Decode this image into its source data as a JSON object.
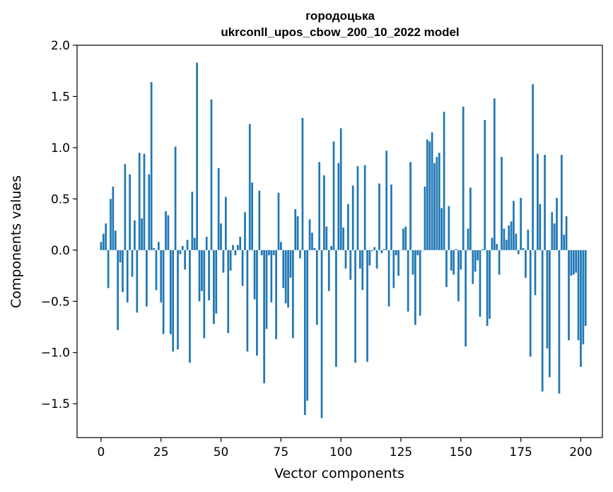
{
  "chart_data": {
    "type": "bar",
    "title": "городоцька",
    "subtitle": "ukrconll_upos_cbow_200_10_2022 model",
    "xlabel": "Vector components",
    "ylabel": "Components values",
    "xlim": [
      -10,
      209
    ],
    "ylim": [
      -1.83,
      2.0
    ],
    "xticks": [
      0,
      25,
      50,
      75,
      100,
      125,
      150,
      175,
      200
    ],
    "yticks": [
      2.0,
      1.5,
      1.0,
      0.5,
      0.0,
      -0.5,
      -1.0,
      -1.5
    ],
    "ytick_labels": [
      "2.0",
      "1.5",
      "1.0",
      "0.5",
      "0.0",
      "−0.5",
      "−1.0",
      "−1.5"
    ],
    "bar_color": "#1f77b4",
    "values": [
      0.08,
      0.16,
      0.26,
      -0.37,
      0.5,
      0.62,
      0.19,
      -0.78,
      -0.12,
      -0.41,
      0.84,
      -0.51,
      0.74,
      -0.26,
      0.29,
      -0.61,
      0.95,
      0.31,
      0.94,
      -0.55,
      0.74,
      1.64,
      0.02,
      -0.39,
      0.08,
      -0.51,
      -0.82,
      0.38,
      0.34,
      -0.82,
      -0.99,
      1.01,
      -0.97,
      -0.04,
      0.04,
      -0.19,
      0.1,
      -1.1,
      0.57,
      0.12,
      1.83,
      -0.5,
      -0.4,
      -0.86,
      0.13,
      -0.49,
      1.47,
      -0.72,
      -0.62,
      0.8,
      0.26,
      -0.22,
      0.52,
      -0.81,
      -0.2,
      0.05,
      -0.05,
      0.05,
      0.13,
      -0.35,
      0.37,
      -0.99,
      1.23,
      0.66,
      -0.48,
      -1.03,
      0.58,
      -0.05,
      -1.3,
      -0.77,
      -0.05,
      -0.51,
      -0.05,
      -0.87,
      0.56,
      0.08,
      -0.37,
      -0.52,
      -0.56,
      -0.27,
      -0.86,
      0.4,
      0.33,
      -0.08,
      1.29,
      -1.61,
      -1.47,
      0.3,
      0.17,
      0.02,
      -0.73,
      0.86,
      -1.64,
      0.73,
      0.23,
      -0.4,
      0.04,
      1.06,
      -1.14,
      0.85,
      1.19,
      0.22,
      -0.18,
      0.45,
      -0.29,
      0.63,
      -1.1,
      0.82,
      -0.18,
      -0.39,
      0.83,
      -1.09,
      -0.15,
      -0.01,
      0.03,
      -0.18,
      0.65,
      -0.03,
      0.01,
      0.97,
      -0.55,
      0.64,
      -0.37,
      -0.05,
      -0.25,
      0.0,
      0.21,
      0.23,
      -0.6,
      0.86,
      -0.24,
      -0.73,
      -0.05,
      -0.64,
      0.0,
      0.62,
      1.08,
      1.06,
      1.15,
      0.85,
      0.91,
      0.95,
      0.41,
      1.35,
      -0.36,
      0.43,
      -0.2,
      -0.24,
      0.01,
      -0.5,
      -0.19,
      1.4,
      -0.94,
      0.21,
      0.61,
      -0.33,
      -0.21,
      -0.1,
      -0.65,
      0.01,
      1.27,
      -0.74,
      -0.67,
      0.12,
      1.48,
      0.06,
      -0.24,
      0.91,
      0.21,
      0.1,
      0.24,
      0.28,
      0.48,
      0.16,
      -0.04,
      0.51,
      0.02,
      -0.27,
      0.2,
      -1.04,
      1.62,
      -0.44,
      0.94,
      0.45,
      -1.38,
      0.93,
      -0.96,
      -1.24,
      0.37,
      0.26,
      0.51,
      -1.4,
      0.93,
      0.15,
      0.33,
      -0.88,
      -0.25,
      -0.24,
      -0.22,
      -0.88,
      -1.14,
      -0.92,
      -0.74
    ]
  }
}
